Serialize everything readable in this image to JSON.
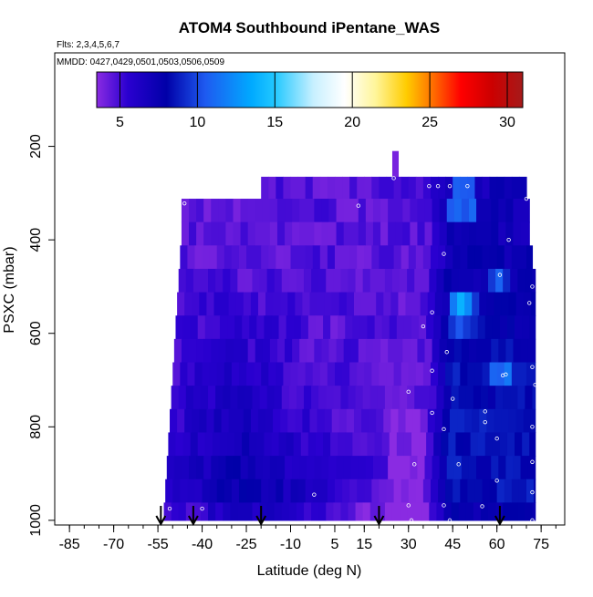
{
  "chart_data": {
    "type": "heatmap",
    "title": "ATOM4 Southbound iPentane_WAS",
    "flights_label": "Flts: 2,3,4,5,6,7",
    "mmdd_label": "MMDD: 0427,0429,0501,0503,0506,0509",
    "xlabel": "Latitude (deg N)",
    "ylabel": "PSXC (mbar)",
    "xlim": [
      -90,
      83
    ],
    "ylim": [
      1010,
      0
    ],
    "x_ticks": [
      -85,
      -70,
      -55,
      -40,
      -25,
      -10,
      5,
      15,
      30,
      45,
      60,
      75
    ],
    "x_tick_labels": [
      "-85",
      "-70",
      "-55",
      "-40",
      "-25",
      "-10",
      "5",
      "15",
      "30",
      "45",
      "60",
      "75"
    ],
    "y_ticks": [
      200,
      400,
      600,
      800,
      1000
    ],
    "y_tick_labels": [
      "200",
      "400",
      "600",
      "800",
      "1000"
    ],
    "colorbar": {
      "range": [
        3.5,
        31
      ],
      "ticks": [
        5,
        10,
        15,
        20,
        25,
        30
      ],
      "tick_labels": [
        "5",
        "10",
        "15",
        "20",
        "25",
        "30"
      ],
      "stops": [
        {
          "v": 3.5,
          "c": "#8a2be2"
        },
        {
          "v": 5.5,
          "c": "#2a00d0"
        },
        {
          "v": 8,
          "c": "#0000a8"
        },
        {
          "v": 10.5,
          "c": "#1e5af0"
        },
        {
          "v": 13.5,
          "c": "#00aaff"
        },
        {
          "v": 15,
          "c": "#22c8ff"
        },
        {
          "v": 17.5,
          "c": "#c8f0ff"
        },
        {
          "v": 19.5,
          "c": "#ffffff"
        },
        {
          "v": 21.5,
          "c": "#fff59a"
        },
        {
          "v": 23.5,
          "c": "#ffcc00"
        },
        {
          "v": 25,
          "c": "#ff7a00"
        },
        {
          "v": 27,
          "c": "#ff0000"
        },
        {
          "v": 29,
          "c": "#cc0000"
        },
        {
          "v": 31,
          "c": "#a61a1a"
        }
      ]
    },
    "pressure_bins": [
      {
        "p_top": 210,
        "p_bot": 265,
        "lat_min": 24.5,
        "lat_max": 26.5
      },
      {
        "p_top": 265,
        "p_bot": 312,
        "lat_min": -20,
        "lat_max": 70
      },
      {
        "p_top": 312,
        "p_bot": 362,
        "lat_min": -47,
        "lat_max": 71
      },
      {
        "p_top": 362,
        "p_bot": 412,
        "lat_min": -47,
        "lat_max": 71
      },
      {
        "p_top": 412,
        "p_bot": 462,
        "lat_min": -47.5,
        "lat_max": 72
      },
      {
        "p_top": 462,
        "p_bot": 512,
        "lat_min": -48,
        "lat_max": 73
      },
      {
        "p_top": 512,
        "p_bot": 562,
        "lat_min": -48.5,
        "lat_max": 73
      },
      {
        "p_top": 562,
        "p_bot": 612,
        "lat_min": -49,
        "lat_max": 73
      },
      {
        "p_top": 612,
        "p_bot": 662,
        "lat_min": -49.5,
        "lat_max": 73
      },
      {
        "p_top": 662,
        "p_bot": 712,
        "lat_min": -50,
        "lat_max": 73
      },
      {
        "p_top": 712,
        "p_bot": 762,
        "lat_min": -50.5,
        "lat_max": 73
      },
      {
        "p_top": 762,
        "p_bot": 812,
        "lat_min": -51,
        "lat_max": 73
      },
      {
        "p_top": 812,
        "p_bot": 862,
        "lat_min": -51.5,
        "lat_max": 73
      },
      {
        "p_top": 862,
        "p_bot": 912,
        "lat_min": -52,
        "lat_max": 73
      },
      {
        "p_top": 912,
        "p_bot": 962,
        "lat_min": -52.5,
        "lat_max": 73
      },
      {
        "p_top": 962,
        "p_bot": 1000,
        "lat_min": -53,
        "lat_max": 73
      }
    ],
    "sample_points": [
      {
        "lat": -46,
        "p": 322
      },
      {
        "lat": 13,
        "p": 327
      },
      {
        "lat": 37,
        "p": 285
      },
      {
        "lat": 40,
        "p": 285
      },
      {
        "lat": 44,
        "p": 285
      },
      {
        "lat": 50,
        "p": 285
      },
      {
        "lat": 25,
        "p": 268
      },
      {
        "lat": 70,
        "p": 312
      },
      {
        "lat": 64,
        "p": 400
      },
      {
        "lat": 42,
        "p": 430
      },
      {
        "lat": 61,
        "p": 475
      },
      {
        "lat": 72,
        "p": 500
      },
      {
        "lat": 71,
        "p": 535
      },
      {
        "lat": 38,
        "p": 555
      },
      {
        "lat": 35,
        "p": 585
      },
      {
        "lat": 43,
        "p": 640
      },
      {
        "lat": 38,
        "p": 680
      },
      {
        "lat": 62,
        "p": 690
      },
      {
        "lat": 63,
        "p": 688
      },
      {
        "lat": 72,
        "p": 672
      },
      {
        "lat": 73,
        "p": 710
      },
      {
        "lat": 30,
        "p": 725
      },
      {
        "lat": 45,
        "p": 740
      },
      {
        "lat": 38,
        "p": 770
      },
      {
        "lat": 56,
        "p": 767
      },
      {
        "lat": 56,
        "p": 790
      },
      {
        "lat": 72,
        "p": 800
      },
      {
        "lat": 42,
        "p": 805
      },
      {
        "lat": 60,
        "p": 825
      },
      {
        "lat": 32,
        "p": 880
      },
      {
        "lat": 47,
        "p": 880
      },
      {
        "lat": 72,
        "p": 875
      },
      {
        "lat": 60,
        "p": 915
      },
      {
        "lat": 72,
        "p": 940
      },
      {
        "lat": -2,
        "p": 945
      },
      {
        "lat": 30,
        "p": 968
      },
      {
        "lat": 42,
        "p": 968
      },
      {
        "lat": 55,
        "p": 970
      },
      {
        "lat": -51,
        "p": 975
      },
      {
        "lat": -40,
        "p": 975
      },
      {
        "lat": 31,
        "p": 1000
      },
      {
        "lat": 44,
        "p": 1000
      },
      {
        "lat": 72,
        "p": 1000
      }
    ],
    "arrows": [
      -54,
      -43,
      -20,
      20,
      61
    ]
  }
}
